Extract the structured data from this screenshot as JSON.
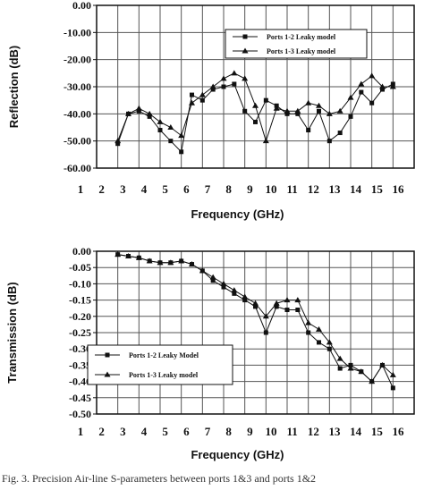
{
  "chart_data": [
    {
      "type": "line",
      "xlabel": "Frequency (GHz)",
      "ylabel": "Reflection (dB)",
      "xlim": [
        1,
        16
      ],
      "ylim": [
        -60,
        0
      ],
      "x_ticks": [
        "1",
        "2",
        "3",
        "4",
        "5",
        "6",
        "7",
        "8",
        "9",
        "10",
        "11",
        "12",
        "13",
        "14",
        "15",
        "16"
      ],
      "y_ticks": [
        "0.00",
        "-10.00",
        "-20.00",
        "-30.00",
        "-40.00",
        "-50.00",
        "-60.00"
      ],
      "grid": true,
      "legend_position": "top-right",
      "series": [
        {
          "name": "Ports 1-2 Leaky model",
          "marker": "square",
          "x": [
            2,
            2.5,
            3,
            3.5,
            4,
            4.5,
            5,
            5.5,
            6,
            6.5,
            7,
            7.5,
            8,
            8.5,
            9,
            9.5,
            10,
            10.5,
            11,
            11.5,
            12,
            12.5,
            13,
            13.5,
            14,
            14.5,
            15
          ],
          "y": [
            -51,
            -40,
            -39,
            -41,
            -46,
            -50,
            -54,
            -33,
            -35,
            -31,
            -30,
            -29,
            -39,
            -43,
            -35,
            -37,
            -40,
            -40,
            -46,
            -39,
            -50,
            -47,
            -41,
            -32,
            -36,
            -31,
            -29
          ]
        },
        {
          "name": "Ports 1-3 Leaky model",
          "marker": "triangle",
          "x": [
            2,
            2.5,
            3,
            3.5,
            4,
            4.5,
            5,
            5.5,
            6,
            6.5,
            7,
            7.5,
            8,
            8.5,
            9,
            9.5,
            10,
            10.5,
            11,
            11.5,
            12,
            12.5,
            13,
            13.5,
            14,
            14.5,
            15
          ],
          "y": [
            -50,
            -40,
            -38,
            -40,
            -43,
            -45,
            -48,
            -36,
            -33,
            -30,
            -27,
            -25,
            -27,
            -37,
            -50,
            -38,
            -39,
            -39,
            -36,
            -37,
            -40,
            -39,
            -34,
            -29,
            -26,
            -30,
            -30
          ]
        }
      ]
    },
    {
      "type": "line",
      "xlabel": "Frequency (GHz)",
      "ylabel": "Transmission (dB)",
      "xlim": [
        1,
        16
      ],
      "ylim": [
        -0.5,
        0
      ],
      "x_ticks": [
        "1",
        "2",
        "3",
        "4",
        "5",
        "6",
        "7",
        "8",
        "9",
        "10",
        "11",
        "12",
        "13",
        "14",
        "15",
        "16"
      ],
      "y_ticks": [
        "0.00",
        "-0.05",
        "-0.10",
        "-0.15",
        "-0.20",
        "-0.25",
        "-0.30",
        "-0.35",
        "-0.40",
        "-0.45",
        "-0.50"
      ],
      "grid": true,
      "legend_position": "bottom-left",
      "series": [
        {
          "name": "Ports 1-2 Leaky Model",
          "marker": "square",
          "x": [
            2,
            2.5,
            3,
            3.5,
            4,
            4.5,
            5,
            5.5,
            6,
            6.5,
            7,
            7.5,
            8,
            8.5,
            9,
            9.5,
            10,
            10.5,
            11,
            11.5,
            12,
            12.5,
            13,
            13.5,
            14,
            14.5,
            15
          ],
          "y": [
            -0.01,
            -0.015,
            -0.02,
            -0.03,
            -0.035,
            -0.035,
            -0.03,
            -0.04,
            -0.06,
            -0.09,
            -0.11,
            -0.13,
            -0.15,
            -0.17,
            -0.25,
            -0.17,
            -0.18,
            -0.18,
            -0.25,
            -0.28,
            -0.3,
            -0.36,
            -0.35,
            -0.37,
            -0.4,
            -0.35,
            -0.42
          ]
        },
        {
          "name": "Ports 1-3 Leaky model",
          "marker": "triangle",
          "x": [
            2,
            2.5,
            3,
            3.5,
            4,
            4.5,
            5,
            5.5,
            6,
            6.5,
            7,
            7.5,
            8,
            8.5,
            9,
            9.5,
            10,
            10.5,
            11,
            11.5,
            12,
            12.5,
            13,
            13.5,
            14,
            14.5,
            15
          ],
          "y": [
            -0.01,
            -0.015,
            -0.02,
            -0.03,
            -0.035,
            -0.035,
            -0.03,
            -0.04,
            -0.06,
            -0.08,
            -0.1,
            -0.12,
            -0.14,
            -0.16,
            -0.2,
            -0.16,
            -0.15,
            -0.15,
            -0.22,
            -0.24,
            -0.28,
            -0.33,
            -0.36,
            -0.37,
            -0.4,
            -0.35,
            -0.38
          ]
        }
      ]
    }
  ],
  "caption": "Fig. 3.   Precision Air-line S-parameters between ports 1&3 and ports 1&2"
}
